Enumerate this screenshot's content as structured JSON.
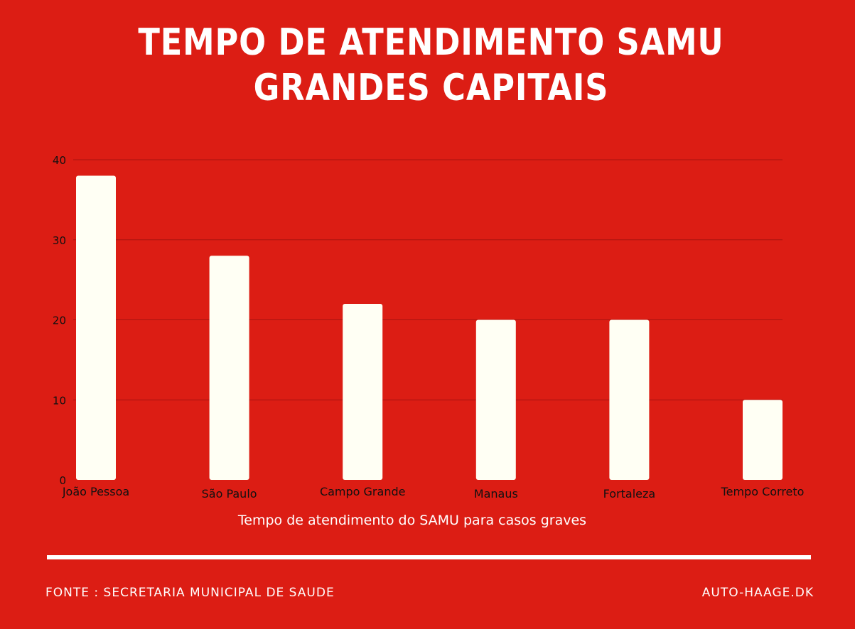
{
  "colors": {
    "background": "#dc1d14",
    "bar": "#fffff4",
    "grid": "#a81410",
    "axis_text": "#111111"
  },
  "chart_data": {
    "type": "bar",
    "title": "TEMPO DE ATENDIMENTO SAMU GRANDES CAPITAIS",
    "xlabel": "Tempo de atendimento do SAMU para casos graves",
    "ylabel": "",
    "categories": [
      "João Pessoa",
      "São Paulo",
      "Campo Grande",
      "Manaus",
      "Fortaleza",
      "Tempo Correto"
    ],
    "values": [
      38,
      28,
      22,
      20,
      20,
      10
    ],
    "ylim": [
      0,
      40
    ],
    "yticks": [
      0,
      10,
      20,
      30,
      40
    ],
    "grid": true,
    "legend": "none"
  },
  "footer": {
    "source": "FONTE : SECRETARIA MUNICIPAL DE SAUDE",
    "site": "AUTO-HAAGE.DK"
  }
}
